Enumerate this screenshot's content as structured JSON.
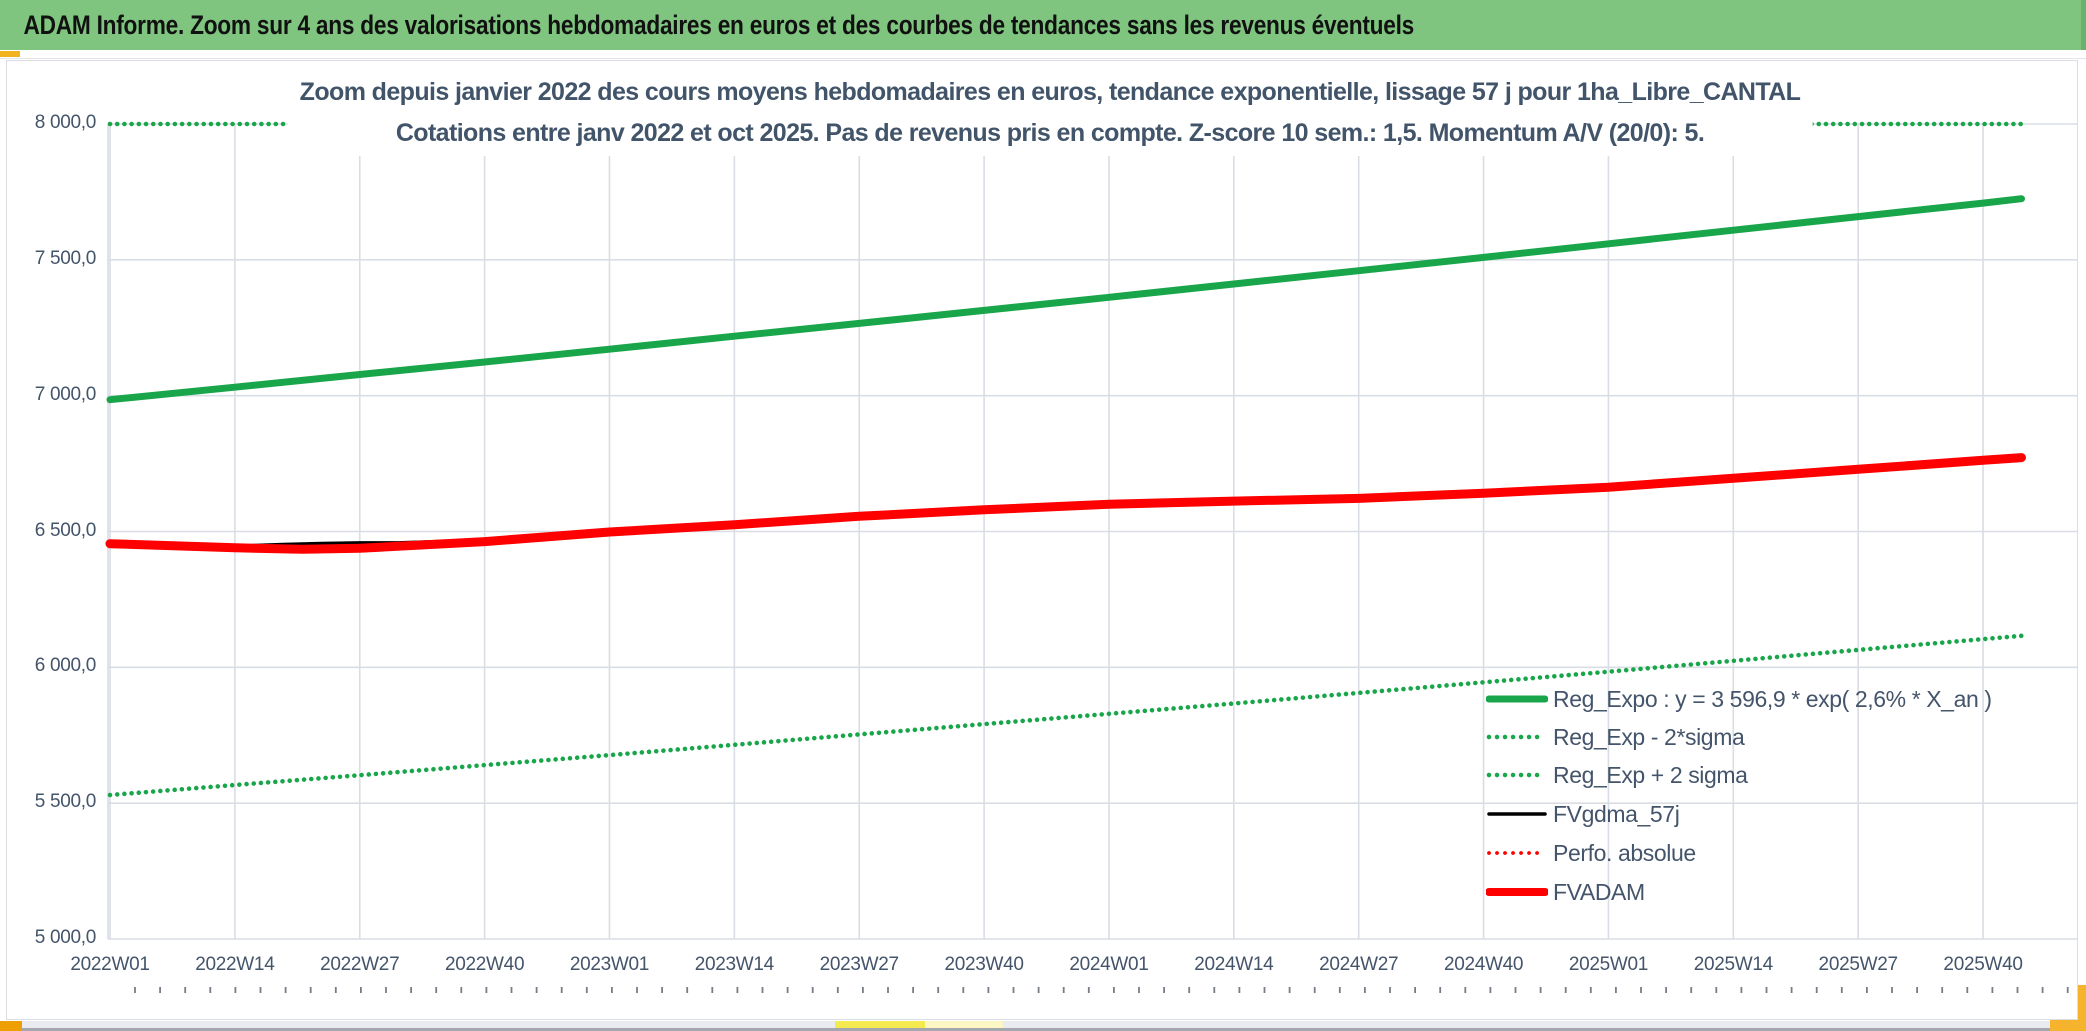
{
  "header": {
    "title": "ADAM Informe. Zoom sur 4 ans des valorisations hebdomadaires en euros et des courbes de tendances sans les revenus éventuels"
  },
  "colors": {
    "header_bg": "#7FC57F",
    "green_line": "#19A64B",
    "red_line": "#FE0000",
    "black_line": "#000000",
    "grid": "#D9DDE4",
    "axis_text": "#44546A",
    "title_text": "#415469",
    "corner_gold": "#F6B42E",
    "corner_orange": "#EE9F06"
  },
  "chart_data": {
    "type": "line",
    "title": "Zoom depuis janvier 2022 des cours moyens hebdomadaires en euros, tendance exponentielle, lissage 57 j pour 1ha_Libre_CANTAL",
    "subtitle": "Cotations entre janv 2022 et oct 2025. Pas de revenus pris en compte. Z-score 10 sem.: 1,5. Momentum A/V (20/0): 5.",
    "ylim": [
      5000,
      8000
    ],
    "grid": true,
    "legend_position": "right-center",
    "y_ticks": [
      {
        "label": "8 000,0",
        "value": 8000
      },
      {
        "label": "7 500,0",
        "value": 7500
      },
      {
        "label": "7 000,0",
        "value": 7000
      },
      {
        "label": "6 500,0",
        "value": 6500
      },
      {
        "label": "6 000,0",
        "value": 6000
      },
      {
        "label": "5 500,0",
        "value": 5500
      },
      {
        "label": "5 000,0",
        "value": 5000
      }
    ],
    "x_ticks": [
      {
        "label": "2022W01",
        "week": 0
      },
      {
        "label": "2022W14",
        "week": 13
      },
      {
        "label": "2022W27",
        "week": 26
      },
      {
        "label": "2022W40",
        "week": 39
      },
      {
        "label": "2023W01",
        "week": 52
      },
      {
        "label": "2023W14",
        "week": 65
      },
      {
        "label": "2023W27",
        "week": 78
      },
      {
        "label": "2023W40",
        "week": 91
      },
      {
        "label": "2024W01",
        "week": 104
      },
      {
        "label": "2024W14",
        "week": 117
      },
      {
        "label": "2024W27",
        "week": 130
      },
      {
        "label": "2024W40",
        "week": 143
      },
      {
        "label": "2025W01",
        "week": 156
      },
      {
        "label": "2025W14",
        "week": 169
      },
      {
        "label": "2025W27",
        "week": 182
      },
      {
        "label": "2025W40",
        "week": 195
      }
    ],
    "x_week_max": 199,
    "series": [
      {
        "name": "Reg_Expo : y = 3 596,9 * exp( 2,6% *  X_an )",
        "color": "#19A64B",
        "style": "solid",
        "width": 7,
        "weeks": [
          0,
          13,
          26,
          39,
          52,
          65,
          78,
          91,
          104,
          117,
          130,
          143,
          156,
          169,
          182,
          195,
          199
        ],
        "values": [
          6985,
          7031,
          7078,
          7124,
          7171,
          7219,
          7266,
          7314,
          7362,
          7411,
          7460,
          7509,
          7559,
          7609,
          7659,
          7709,
          7725
        ]
      },
      {
        "name": "Reg_Exp - 2*sigma",
        "color": "#19A64B",
        "style": "dot",
        "width": 4.6,
        "weeks": [
          0,
          13,
          26,
          39,
          52,
          65,
          78,
          91,
          104,
          117,
          130,
          143,
          156,
          169,
          182,
          195,
          199
        ],
        "values": [
          5530,
          5567,
          5603,
          5640,
          5677,
          5715,
          5753,
          5791,
          5829,
          5867,
          5906,
          5945,
          5984,
          6024,
          6064,
          6104,
          6116
        ]
      },
      {
        "name": "Reg_Exp + 2 sigma",
        "color": "#19A64B",
        "style": "dot",
        "width": 4.6,
        "weeks": [
          0,
          199
        ],
        "values": [
          8000,
          8000
        ],
        "note": "clipped at chart top (8000)"
      },
      {
        "name": "FVgdma_57j",
        "color": "#000000",
        "style": "solid",
        "width": 3.5,
        "weeks": [
          0,
          10,
          14,
          18,
          22,
          26,
          30,
          34,
          39,
          52,
          65,
          78,
          91,
          104,
          117,
          130,
          143,
          156,
          169,
          182,
          195,
          199
        ],
        "values": [
          6455,
          6445,
          6447,
          6452,
          6456,
          6458,
          6458,
          6463,
          6466,
          6498,
          6525,
          6556,
          6580,
          6600,
          6612,
          6622,
          6641,
          6663,
          6696,
          6729,
          6762,
          6772
        ]
      },
      {
        "name": "Perfo. absolue",
        "color": "#FE0000",
        "style": "dot",
        "width": 3.8,
        "weeks": [
          0,
          13,
          20,
          26,
          39,
          52,
          65,
          78,
          91,
          104,
          117,
          130,
          143,
          156,
          169,
          182,
          195,
          199
        ],
        "values": [
          6455,
          6440,
          6435,
          6438,
          6463,
          6498,
          6525,
          6556,
          6580,
          6600,
          6612,
          6622,
          6641,
          6663,
          6696,
          6729,
          6762,
          6772
        ]
      },
      {
        "name": "FVADAM",
        "color": "#FE0000",
        "style": "solid",
        "width": 9,
        "weeks": [
          0,
          13,
          20,
          26,
          39,
          52,
          65,
          78,
          91,
          104,
          117,
          130,
          143,
          156,
          169,
          182,
          195,
          199
        ],
        "values": [
          6455,
          6440,
          6435,
          6438,
          6463,
          6498,
          6525,
          6556,
          6580,
          6600,
          6612,
          6622,
          6641,
          6663,
          6696,
          6729,
          6762,
          6772
        ]
      }
    ]
  }
}
